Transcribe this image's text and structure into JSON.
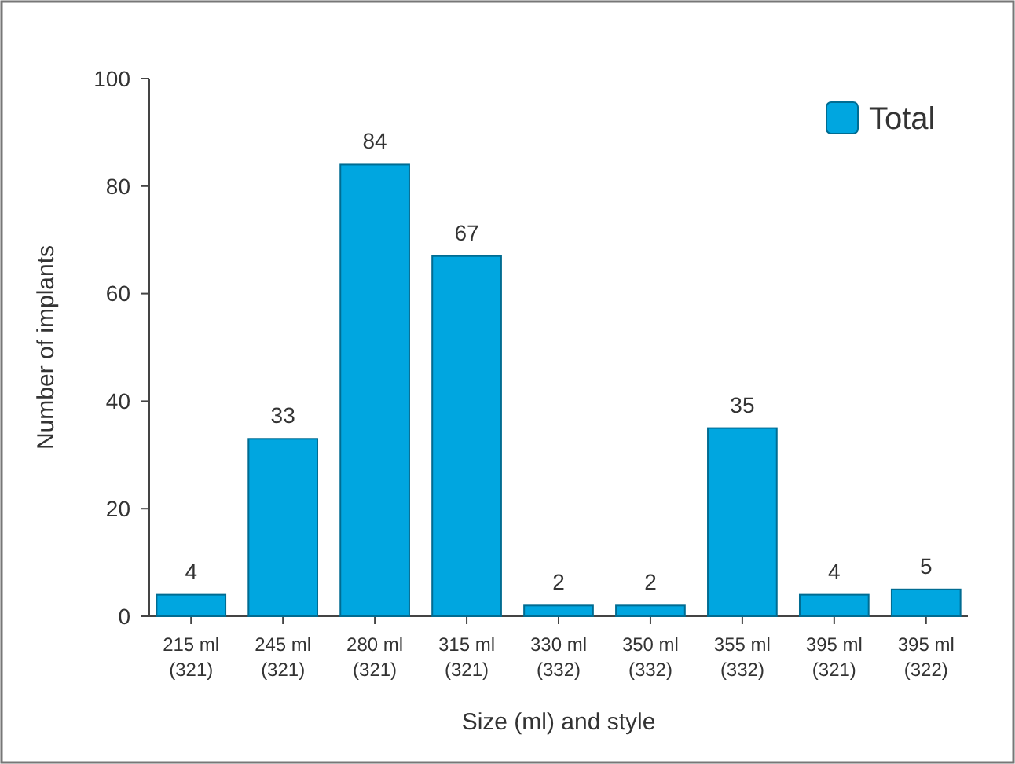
{
  "chart_data": {
    "type": "bar",
    "xlabel": "Size (ml) and style",
    "ylabel": "Number of implants",
    "categories": [
      "215 ml\n(321)",
      "245 ml\n(321)",
      "280 ml\n(321)",
      "315 ml\n(321)",
      "330 ml\n(332)",
      "350 ml\n(332)",
      "355 ml\n(332)",
      "395 ml\n(321)",
      "395 ml\n(322)"
    ],
    "series": [
      {
        "name": "Total",
        "color": "#00a6e0",
        "values": [
          4,
          33,
          84,
          67,
          2,
          2,
          35,
          4,
          5
        ]
      }
    ],
    "ylim": [
      0,
      100
    ],
    "yticks": [
      0,
      20,
      40,
      60,
      80,
      100
    ],
    "data_labels": true,
    "grid": false,
    "legend": "top right"
  }
}
